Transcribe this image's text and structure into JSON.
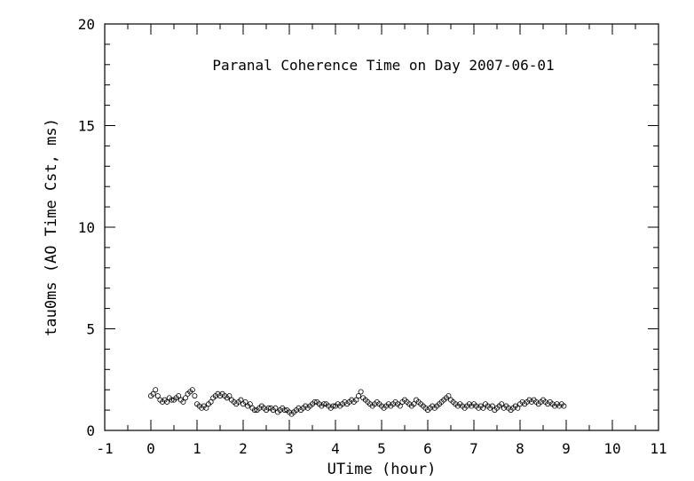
{
  "chart_data": {
    "type": "scatter",
    "title": "Paranal Coherence Time on Day 2007-06-01",
    "xlabel": "UTime (hour)",
    "ylabel": "tau0ms (AO Time Cst, ms)",
    "xlim": [
      -1,
      11
    ],
    "ylim": [
      0,
      20
    ],
    "xticks": [
      "-1",
      "0",
      "1",
      "2",
      "3",
      "4",
      "5",
      "6",
      "7",
      "8",
      "9",
      "10",
      "11"
    ],
    "yticks": [
      "0",
      "5",
      "10",
      "15",
      "20"
    ],
    "marker": "open-circle",
    "grid": false,
    "series": [
      {
        "x": [
          0.0,
          0.05,
          0.1,
          0.15,
          0.2,
          0.25,
          0.3,
          0.35,
          0.4,
          0.45,
          0.5,
          0.55,
          0.6,
          0.65,
          0.7,
          0.75,
          0.8,
          0.85,
          0.9,
          0.95,
          1.0,
          1.05,
          1.1,
          1.15,
          1.2,
          1.25,
          1.3,
          1.35,
          1.4,
          1.45,
          1.5,
          1.55,
          1.6,
          1.65,
          1.7,
          1.75,
          1.8,
          1.85,
          1.9,
          1.95,
          2.0,
          2.05,
          2.1,
          2.15,
          2.2,
          2.25,
          2.3,
          2.35,
          2.4,
          2.45,
          2.5,
          2.55,
          2.6,
          2.65,
          2.7,
          2.75,
          2.8,
          2.85,
          2.9,
          2.95,
          3.0,
          3.05,
          3.1,
          3.15,
          3.2,
          3.25,
          3.3,
          3.35,
          3.4,
          3.45,
          3.5,
          3.55,
          3.6,
          3.65,
          3.7,
          3.75,
          3.8,
          3.85,
          3.9,
          3.95,
          4.0,
          4.05,
          4.1,
          4.15,
          4.2,
          4.25,
          4.3,
          4.35,
          4.4,
          4.45,
          4.5,
          4.55,
          4.6,
          4.65,
          4.7,
          4.75,
          4.8,
          4.85,
          4.9,
          4.95,
          5.0,
          5.05,
          5.1,
          5.15,
          5.2,
          5.25,
          5.3,
          5.35,
          5.4,
          5.45,
          5.5,
          5.55,
          5.6,
          5.65,
          5.7,
          5.75,
          5.8,
          5.85,
          5.9,
          5.95,
          6.0,
          6.05,
          6.1,
          6.15,
          6.2,
          6.25,
          6.3,
          6.35,
          6.4,
          6.45,
          6.5,
          6.55,
          6.6,
          6.65,
          6.7,
          6.75,
          6.8,
          6.85,
          6.9,
          6.95,
          7.0,
          7.05,
          7.1,
          7.15,
          7.2,
          7.25,
          7.3,
          7.35,
          7.4,
          7.45,
          7.5,
          7.55,
          7.6,
          7.65,
          7.7,
          7.75,
          7.8,
          7.85,
          7.9,
          7.95,
          8.0,
          8.05,
          8.1,
          8.15,
          8.2,
          8.25,
          8.3,
          8.35,
          8.4,
          8.45,
          8.5,
          8.55,
          8.6,
          8.65,
          8.7,
          8.75,
          8.8,
          8.85,
          8.9,
          8.95
        ],
        "y": [
          1.7,
          1.8,
          2.0,
          1.7,
          1.5,
          1.4,
          1.5,
          1.4,
          1.6,
          1.5,
          1.5,
          1.6,
          1.7,
          1.5,
          1.4,
          1.6,
          1.8,
          1.9,
          2.0,
          1.7,
          1.3,
          1.2,
          1.1,
          1.2,
          1.1,
          1.3,
          1.4,
          1.6,
          1.7,
          1.8,
          1.7,
          1.8,
          1.7,
          1.6,
          1.7,
          1.5,
          1.4,
          1.3,
          1.4,
          1.5,
          1.3,
          1.4,
          1.2,
          1.3,
          1.1,
          1.0,
          1.0,
          1.1,
          1.2,
          1.1,
          1.0,
          1.1,
          1.1,
          1.0,
          1.1,
          0.9,
          1.0,
          1.1,
          1.0,
          1.0,
          0.9,
          0.8,
          0.9,
          1.0,
          1.1,
          1.0,
          1.1,
          1.2,
          1.1,
          1.2,
          1.3,
          1.4,
          1.4,
          1.3,
          1.2,
          1.3,
          1.3,
          1.2,
          1.1,
          1.2,
          1.2,
          1.3,
          1.2,
          1.3,
          1.4,
          1.3,
          1.4,
          1.5,
          1.4,
          1.5,
          1.7,
          1.9,
          1.6,
          1.5,
          1.4,
          1.3,
          1.2,
          1.3,
          1.4,
          1.3,
          1.2,
          1.1,
          1.2,
          1.3,
          1.2,
          1.3,
          1.4,
          1.3,
          1.2,
          1.4,
          1.5,
          1.4,
          1.3,
          1.2,
          1.3,
          1.5,
          1.4,
          1.3,
          1.2,
          1.1,
          1.0,
          1.1,
          1.2,
          1.1,
          1.2,
          1.3,
          1.4,
          1.5,
          1.6,
          1.7,
          1.5,
          1.4,
          1.3,
          1.2,
          1.3,
          1.2,
          1.1,
          1.2,
          1.3,
          1.2,
          1.3,
          1.2,
          1.1,
          1.2,
          1.1,
          1.3,
          1.2,
          1.1,
          1.2,
          1.0,
          1.1,
          1.2,
          1.3,
          1.1,
          1.2,
          1.1,
          1.0,
          1.1,
          1.2,
          1.1,
          1.3,
          1.4,
          1.3,
          1.4,
          1.5,
          1.4,
          1.5,
          1.4,
          1.3,
          1.4,
          1.5,
          1.4,
          1.3,
          1.4,
          1.3,
          1.2,
          1.3,
          1.2,
          1.3,
          1.2
        ]
      }
    ]
  }
}
